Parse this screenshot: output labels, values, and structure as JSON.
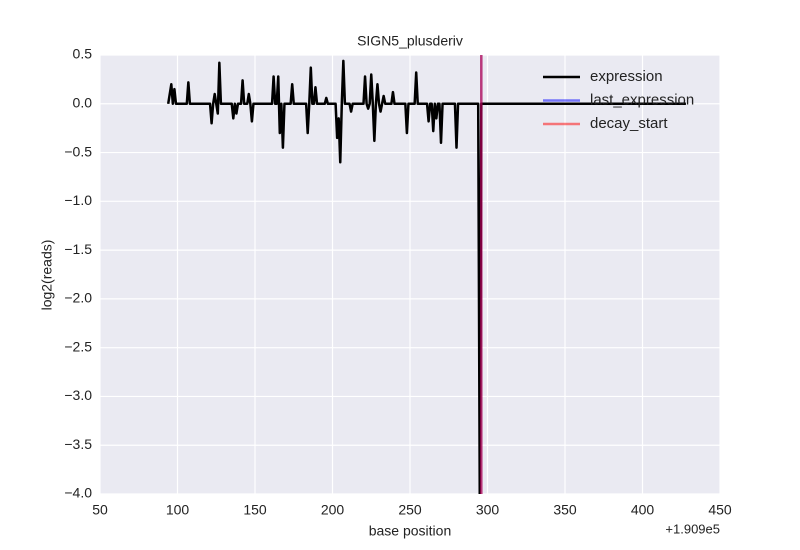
{
  "chart_data": {
    "type": "line",
    "title": "SIGN5_plusderiv",
    "x_label": "base position",
    "y_label": "log2(reads)",
    "x_offset_label": "+1.909e5",
    "xlim": [
      50,
      450
    ],
    "xticks": [
      50,
      100,
      150,
      200,
      250,
      300,
      350,
      400,
      450
    ],
    "ylim": [
      -4.0,
      0.5
    ],
    "yticks": [
      0.5,
      {
        "value": 0,
        "label": "0.0"
      },
      {
        "value": -0.5,
        "label": "−0.5"
      },
      {
        "value": -1,
        "label": "−1.0"
      },
      {
        "value": -1.5,
        "label": "−1.5"
      },
      {
        "value": -2,
        "label": "−2.0"
      },
      {
        "value": -2.5,
        "label": "−2.5"
      },
      {
        "value": -3,
        "label": "−3.0"
      },
      {
        "value": -3.5,
        "label": "−3.5"
      },
      {
        "value": -4,
        "label": "−4.0"
      }
    ],
    "grid": true,
    "legend": "upper right",
    "series": [
      {
        "name": "expression",
        "color": "#000000",
        "x": [
          94,
          96,
          97,
          98,
          99,
          106,
          107,
          108,
          121,
          122,
          123,
          124,
          125,
          126,
          127,
          128,
          135,
          136,
          137,
          138,
          139,
          141,
          142,
          143,
          145,
          146,
          147,
          148,
          149,
          161,
          162,
          163,
          164,
          165,
          166,
          167,
          168,
          169,
          173,
          174,
          175,
          183,
          184,
          185,
          186,
          187,
          188,
          189,
          190,
          195,
          196,
          197,
          202,
          203,
          204,
          205,
          206,
          207,
          208,
          211,
          212,
          213,
          220,
          221,
          222,
          223,
          224,
          225,
          226,
          227,
          228,
          229,
          230,
          231,
          232,
          233,
          234,
          238,
          239,
          240,
          247,
          248,
          249,
          253,
          254,
          255,
          261,
          262,
          263,
          264,
          265,
          266,
          267,
          268,
          269,
          270,
          271,
          279,
          280,
          281,
          294,
          295,
          296,
          428
        ],
        "values": [
          0,
          0.2,
          0,
          0.15,
          0,
          0,
          0.22,
          0,
          0,
          -0.2,
          0,
          0.1,
          0,
          -0.1,
          0.42,
          0,
          0,
          -0.15,
          0,
          -0.1,
          0,
          0,
          0.24,
          0,
          0,
          0.1,
          0,
          -0.18,
          0,
          0,
          0.28,
          0,
          0,
          0.28,
          -0.3,
          0,
          -0.45,
          0,
          0,
          0.2,
          0,
          0,
          -0.3,
          0,
          0.37,
          0,
          0,
          0.17,
          0,
          0,
          0.06,
          0,
          0,
          -0.35,
          -0.15,
          -0.6,
          0,
          0.44,
          0,
          0,
          -0.08,
          0,
          0,
          0.28,
          0,
          -0.05,
          0,
          0.3,
          0,
          -0.38,
          0,
          0.2,
          0,
          -0.08,
          0,
          0.08,
          0,
          0,
          0.12,
          0,
          0,
          -0.3,
          0,
          0,
          0.32,
          0,
          0,
          -0.18,
          0,
          0,
          -0.28,
          0,
          -0.15,
          0,
          0,
          -0.4,
          0,
          0,
          -0.45,
          0,
          0,
          -4.0,
          0,
          0
        ]
      },
      {
        "name": "last_expression",
        "color": "#0000ff",
        "vline": 296
      },
      {
        "name": "decay_start",
        "color": "#ff0000",
        "vline": 296
      }
    ]
  }
}
